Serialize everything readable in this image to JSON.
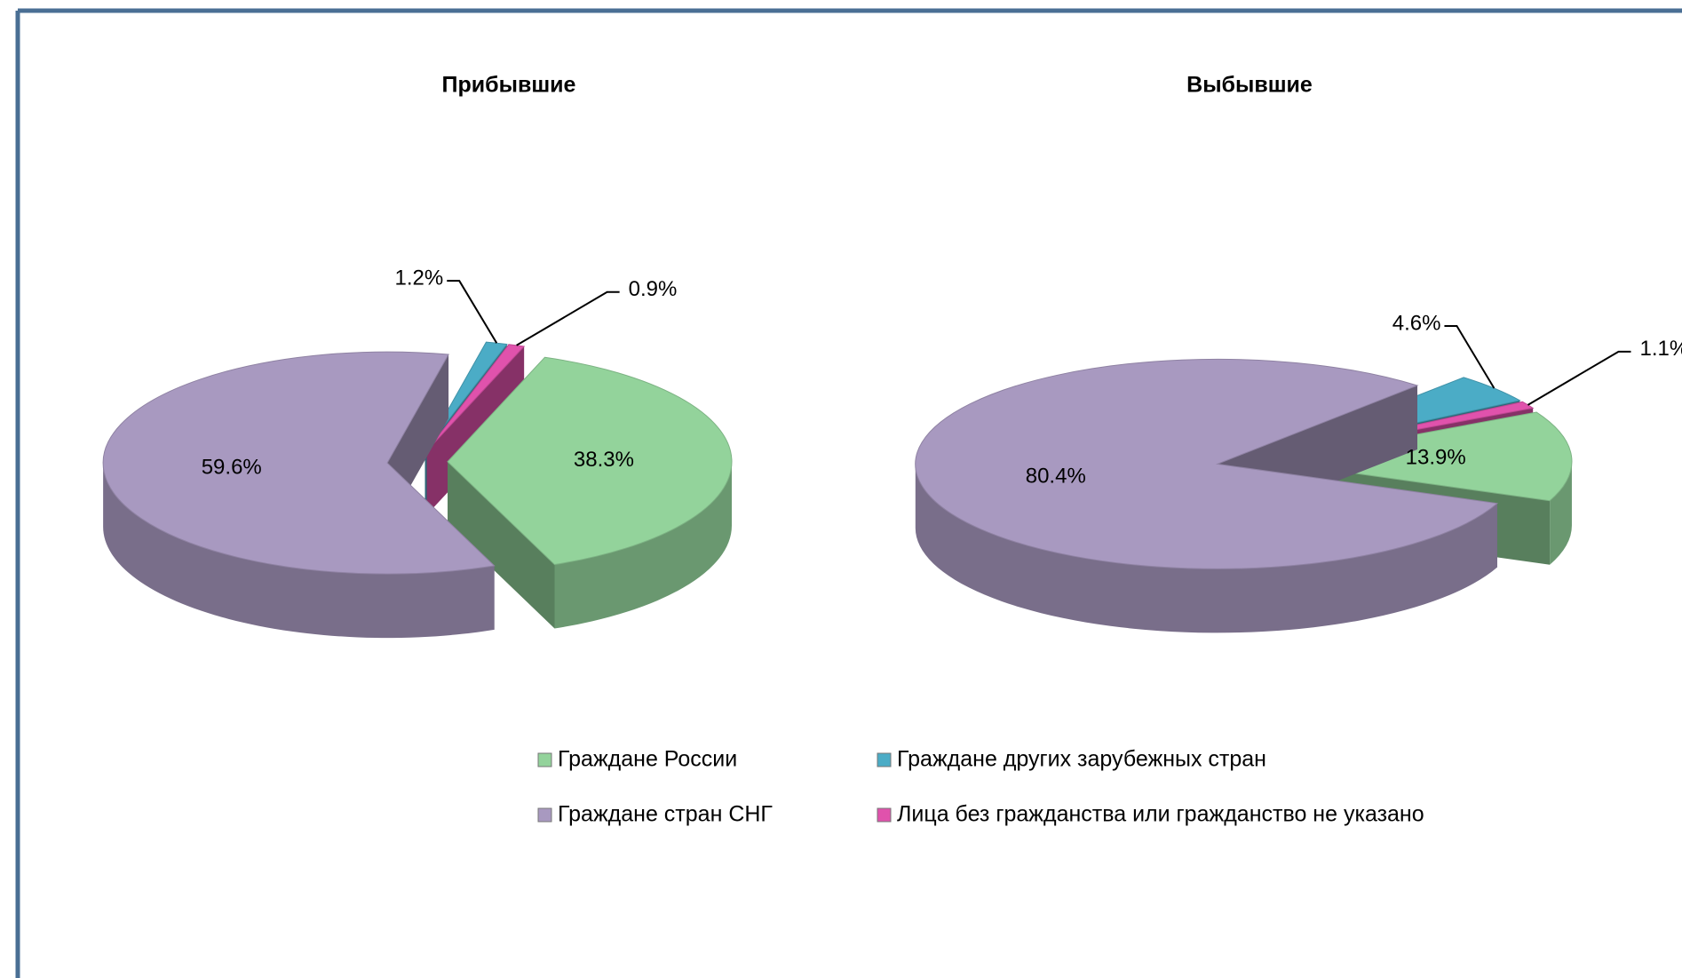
{
  "chart_data": [
    {
      "type": "pie",
      "title": "Прибывшие",
      "values": [
        38.3,
        59.6,
        1.2,
        0.9
      ],
      "value_labels": [
        "38.3%",
        "59.6%",
        "1.2%",
        "0.9%"
      ]
    },
    {
      "type": "pie",
      "title": "Выбывшие",
      "values": [
        13.9,
        80.4,
        4.6,
        1.1
      ],
      "value_labels": [
        "13.9%",
        "80.4%",
        "4.6%",
        "1.1%"
      ]
    }
  ],
  "legend": {
    "categories": [
      "Граждане России",
      "Граждане стран СНГ",
      "Граждане других зарубежных стран",
      "Лица без гражданства или гражданство не указано"
    ],
    "colors": [
      "#93d39b",
      "#a899c0",
      "#4bacc6",
      "#e052ac"
    ]
  }
}
